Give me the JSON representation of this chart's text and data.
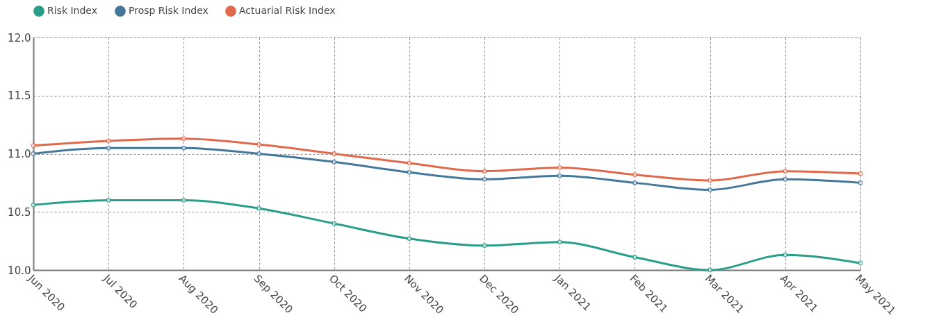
{
  "chart_data": {
    "type": "line",
    "categories": [
      "Jun 2020",
      "Jul 2020",
      "Aug 2020",
      "Sep 2020",
      "Oct 2020",
      "Nov 2020",
      "Dec 2020",
      "Jan 2021",
      "Feb 2021",
      "Mar 2021",
      "Apr 2021",
      "May 2021"
    ],
    "series": [
      {
        "name": "Risk Index",
        "color": "#2a9d8a",
        "values": [
          10.56,
          10.6,
          10.6,
          10.53,
          10.4,
          10.27,
          10.21,
          10.24,
          10.11,
          10.0,
          10.13,
          10.06
        ]
      },
      {
        "name": "Prosp Risk Index",
        "color": "#44779a",
        "values": [
          11.0,
          11.05,
          11.05,
          11.0,
          10.93,
          10.84,
          10.78,
          10.81,
          10.75,
          10.69,
          10.78,
          10.75
        ]
      },
      {
        "name": "Actuarial Risk Index",
        "color": "#e0694c",
        "values": [
          11.07,
          11.11,
          11.13,
          11.08,
          11.0,
          10.92,
          10.85,
          10.88,
          10.82,
          10.77,
          10.85,
          10.83
        ]
      }
    ],
    "ylim": [
      10.0,
      12.0
    ],
    "yticks": [
      {
        "value": 10.0,
        "label": "10.0"
      },
      {
        "value": 10.5,
        "label": "10.5"
      },
      {
        "value": 11.0,
        "label": "11.0"
      },
      {
        "value": 11.5,
        "label": "11.5"
      },
      {
        "value": 12.0,
        "label": "12.0"
      }
    ],
    "grid": true,
    "legend": "top",
    "marker": "circle",
    "line_style": "solid"
  }
}
